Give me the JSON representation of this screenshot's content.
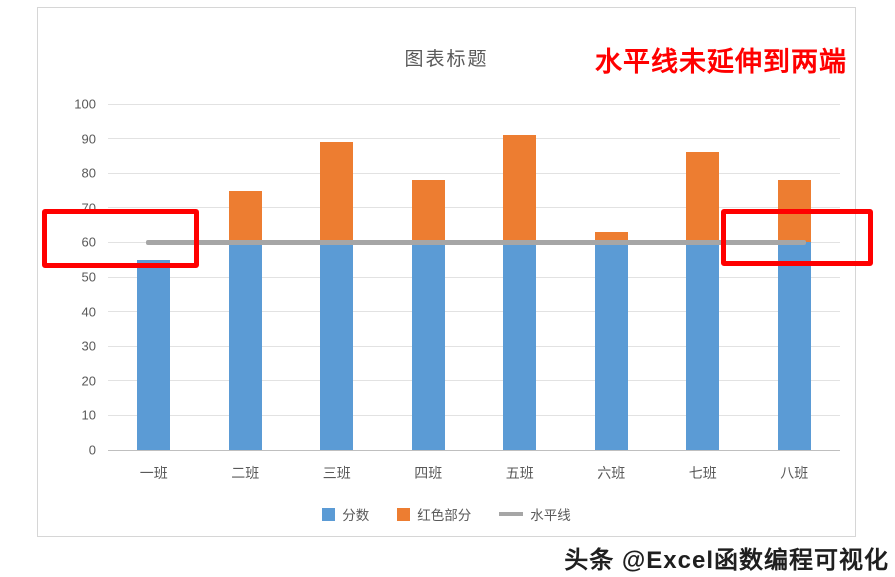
{
  "chart_data": {
    "type": "bar",
    "stacked": true,
    "title": "图表标题",
    "categories": [
      "一班",
      "二班",
      "三班",
      "四班",
      "五班",
      "六班",
      "七班",
      "八班"
    ],
    "series": [
      {
        "name": "分数",
        "color": "#5B9BD5",
        "values": [
          55,
          60,
          60,
          60,
          60,
          60,
          60,
          60
        ]
      },
      {
        "name": "红色部分",
        "color": "#ED7D31",
        "values": [
          0,
          15,
          29,
          18,
          31,
          3,
          26,
          18
        ]
      }
    ],
    "line_series": {
      "name": "水平线",
      "color": "#A6A6A6",
      "value": 60
    },
    "ylim": [
      0,
      100
    ],
    "ytick_step": 10,
    "grid": true,
    "legend_position": "bottom"
  },
  "annotation": {
    "text": "水平线未延伸到两端",
    "color": "#FF0000"
  },
  "highlight": {
    "color": "#FF0000"
  },
  "watermark": {
    "text": "头条 @Excel函数编程可视化"
  }
}
